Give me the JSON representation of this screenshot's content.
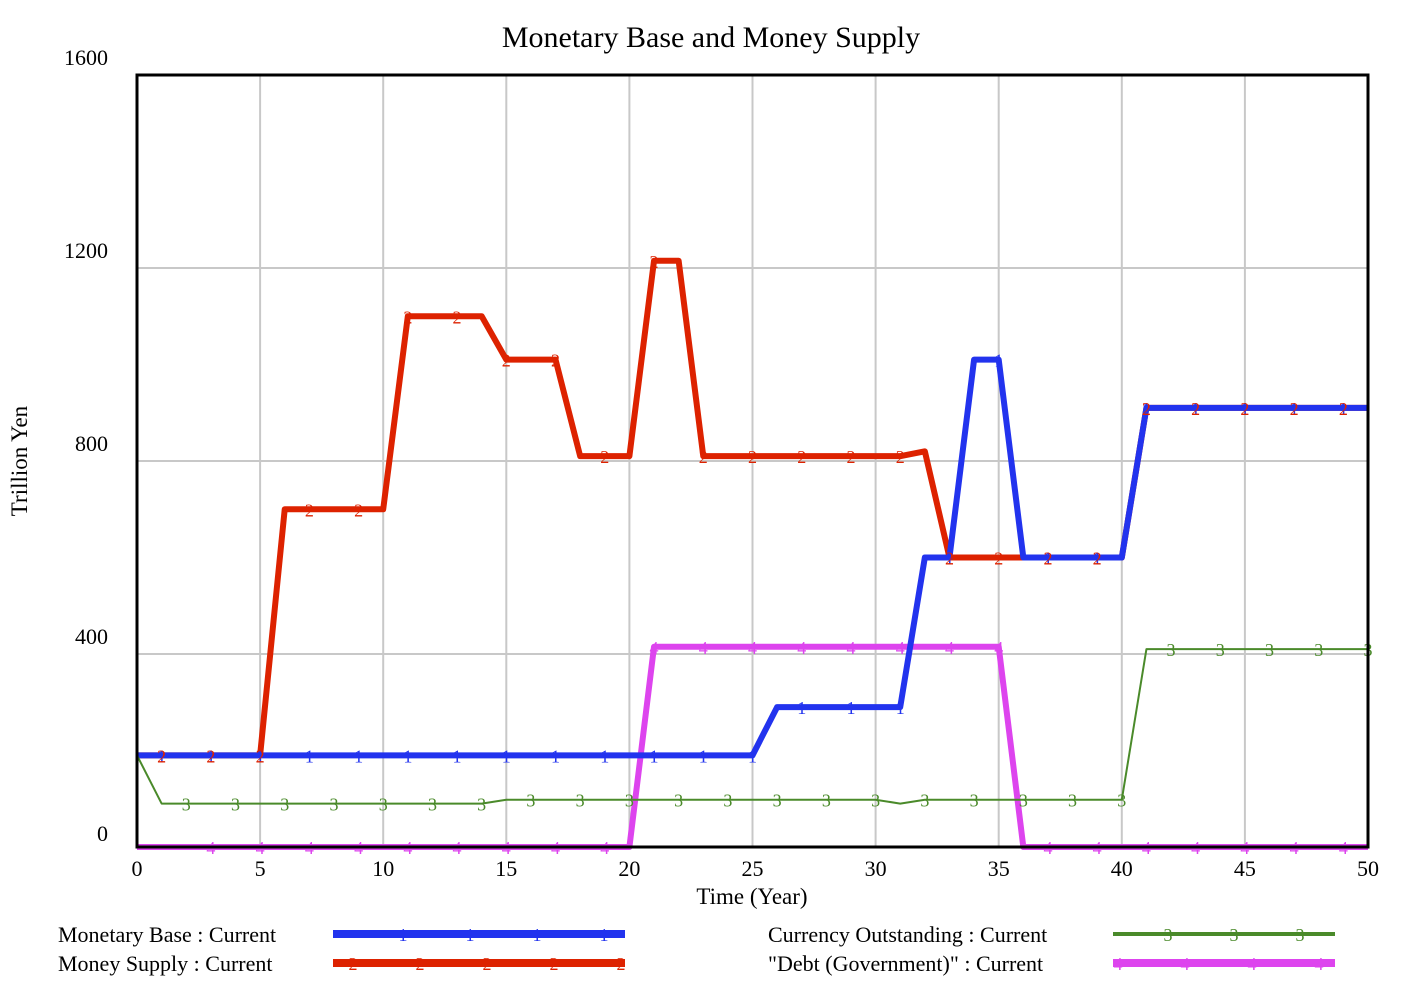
{
  "chart_data": {
    "type": "line",
    "title": "Monetary Base and Money Supply",
    "xlabel": "Time (Year)",
    "ylabel": "Trillion Yen",
    "xlim": [
      0,
      50
    ],
    "ylim": [
      0,
      1600
    ],
    "xticks": [
      "0",
      "5",
      "10",
      "15",
      "20",
      "25",
      "30",
      "35",
      "40",
      "45",
      "50"
    ],
    "yticks": [
      "0",
      "400",
      "800",
      "1200",
      "1600"
    ],
    "ytick_values": [
      0,
      400,
      800,
      1200,
      1600
    ],
    "grid": true,
    "legend_position": "bottom",
    "x": [
      0,
      1,
      2,
      3,
      4,
      5,
      6,
      7,
      8,
      9,
      10,
      11,
      12,
      13,
      14,
      15,
      16,
      17,
      18,
      19,
      20,
      21,
      22,
      23,
      24,
      25,
      26,
      27,
      28,
      29,
      30,
      31,
      32,
      33,
      34,
      35,
      36,
      37,
      38,
      39,
      40,
      41,
      42,
      43,
      44,
      45,
      46,
      47,
      48,
      49,
      50
    ],
    "series": [
      {
        "name": "Monetary Base : Current",
        "marker": "1",
        "color": "#2233ee",
        "values": [
          190,
          190,
          190,
          190,
          190,
          190,
          190,
          190,
          190,
          190,
          190,
          190,
          190,
          190,
          190,
          190,
          190,
          190,
          190,
          190,
          190,
          190,
          190,
          190,
          190,
          190,
          290,
          290,
          290,
          290,
          290,
          290,
          600,
          600,
          1010,
          1010,
          600,
          600,
          600,
          600,
          600,
          910,
          910,
          910,
          910,
          910,
          910,
          910,
          910,
          910,
          910
        ]
      },
      {
        "name": "Money Supply : Current",
        "marker": "2",
        "color": "#dd2200",
        "values": [
          190,
          190,
          190,
          190,
          190,
          190,
          700,
          700,
          700,
          700,
          700,
          1100,
          1100,
          1100,
          1100,
          1010,
          1010,
          1010,
          810,
          810,
          810,
          1215,
          1215,
          810,
          810,
          810,
          810,
          810,
          810,
          810,
          810,
          810,
          820,
          600,
          600,
          600,
          600,
          600,
          600,
          600,
          600,
          910,
          910,
          910,
          910,
          910,
          910,
          910,
          910,
          910,
          910
        ]
      },
      {
        "name": "Currency Outstanding : Current",
        "marker": "3",
        "color": "#4a8a2a",
        "values": [
          190,
          90,
          90,
          90,
          90,
          90,
          90,
          90,
          90,
          90,
          90,
          90,
          90,
          90,
          90,
          98,
          98,
          98,
          98,
          98,
          98,
          98,
          98,
          98,
          98,
          98,
          98,
          98,
          98,
          98,
          98,
          90,
          98,
          98,
          98,
          98,
          98,
          98,
          98,
          98,
          98,
          410,
          410,
          410,
          410,
          410,
          410,
          410,
          410,
          410,
          410
        ]
      },
      {
        "name": "\"Debt (Government)\" : Current",
        "marker": "4",
        "color": "#dd44ee",
        "values": [
          0,
          0,
          0,
          0,
          0,
          0,
          0,
          0,
          0,
          0,
          0,
          0,
          0,
          0,
          0,
          0,
          0,
          0,
          0,
          0,
          0,
          415,
          415,
          415,
          415,
          415,
          415,
          415,
          415,
          415,
          415,
          415,
          415,
          415,
          415,
          415,
          0,
          0,
          0,
          0,
          0,
          0,
          0,
          0,
          0,
          0,
          0,
          0,
          0,
          0,
          0
        ]
      }
    ]
  }
}
